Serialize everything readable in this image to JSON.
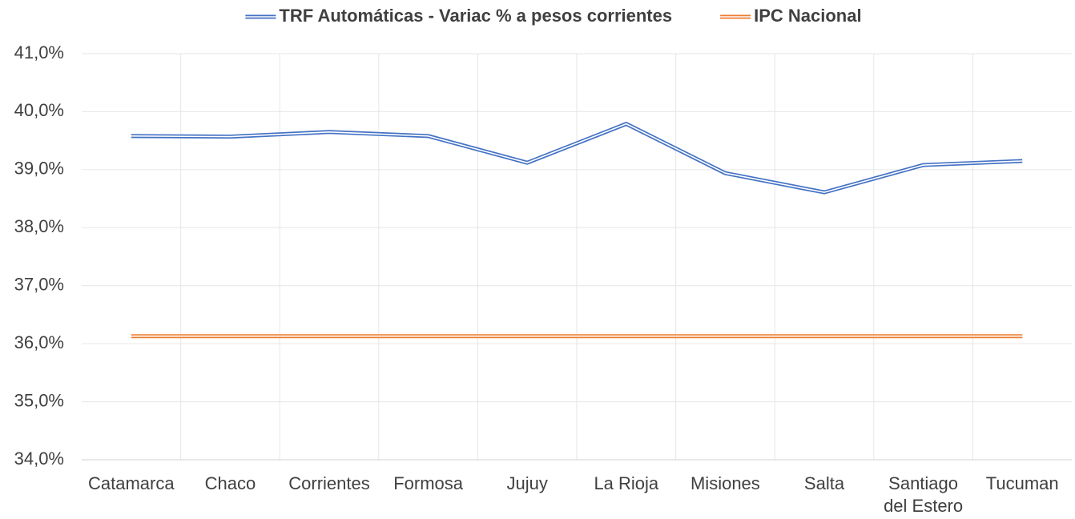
{
  "chart_data": {
    "type": "line",
    "categories": [
      "Catamarca",
      "Chaco",
      "Corrientes",
      "Formosa",
      "Jujuy",
      "La Rioja",
      "Misiones",
      "Salta",
      "Santiago del Estero",
      "Tucuman"
    ],
    "series": [
      {
        "name": "TRF Automáticas - Variac % a pesos corrientes",
        "color": "#4472c4",
        "values": [
          39.58,
          39.57,
          39.65,
          39.58,
          39.12,
          39.79,
          38.94,
          38.61,
          39.08,
          39.15
        ]
      },
      {
        "name": "IPC Nacional",
        "color": "#ed7d31",
        "values": [
          36.13,
          36.13,
          36.13,
          36.13,
          36.13,
          36.13,
          36.13,
          36.13,
          36.13,
          36.13
        ]
      }
    ],
    "ylim": [
      34,
      41
    ],
    "yticks": [
      {
        "value": 34,
        "label": "34,0%"
      },
      {
        "value": 35,
        "label": "35,0%"
      },
      {
        "value": 36,
        "label": "36,0%"
      },
      {
        "value": 37,
        "label": "37,0%"
      },
      {
        "value": 38,
        "label": "38,0%"
      },
      {
        "value": 39,
        "label": "39,0%"
      },
      {
        "value": 40,
        "label": "40,0%"
      },
      {
        "value": 41,
        "label": "41,0%"
      }
    ],
    "grid": true,
    "legend": "top"
  }
}
